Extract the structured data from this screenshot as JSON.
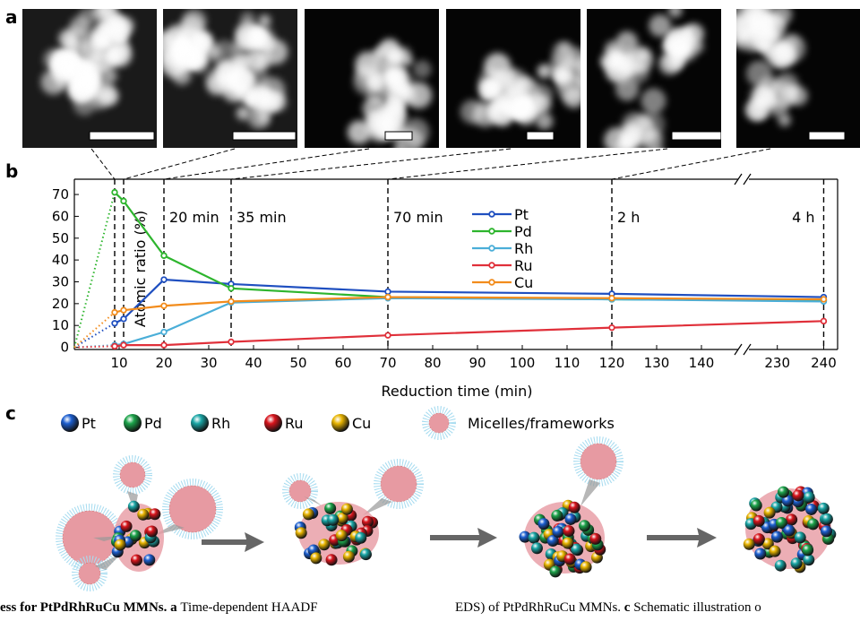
{
  "panel_labels": [
    "a",
    "b",
    "c"
  ],
  "schematic": {
    "legend": [
      "Pt",
      "Pd",
      "Rh",
      "Ru",
      "Cu"
    ],
    "micelle_label": "Micelles/frameworks"
  },
  "caption": {
    "left_bold": "ess for PtPdRhRuCu MMNs. a",
    "left": "Time-dependent HAADF",
    "right": "EDS) of PtPdRhRuCu MMNs.",
    "right_bold": "c",
    "right_end": "Schematic illustration o"
  },
  "chart_data": {
    "type": "line",
    "xlabel": "Reduction time (min)",
    "ylabel": "Atomic ratio (%)",
    "x": [
      0,
      9,
      11,
      20,
      35,
      70,
      120,
      240
    ],
    "series": [
      {
        "name": "Pt",
        "color": "#1f4fc0",
        "values": [
          0,
          11,
          13,
          31,
          29,
          25.5,
          24.5,
          23
        ]
      },
      {
        "name": "Pd",
        "color": "#2db52d",
        "values": [
          0,
          71,
          67,
          42,
          27,
          23,
          22,
          21.5
        ]
      },
      {
        "name": "Rh",
        "color": "#4aaed8",
        "values": [
          0,
          1,
          1.5,
          7,
          20.5,
          22.5,
          22,
          21
        ]
      },
      {
        "name": "Ru",
        "color": "#e0303a",
        "values": [
          0,
          0.5,
          1,
          1,
          2.5,
          5.5,
          9,
          12
        ]
      },
      {
        "name": "Cu",
        "color": "#f28c1c",
        "values": [
          0,
          16,
          17,
          19,
          21,
          23,
          22.5,
          22
        ]
      }
    ],
    "xlim": [
      0,
      243
    ],
    "x_break": [
      146,
      226
    ],
    "xticks": [
      10,
      20,
      30,
      40,
      50,
      60,
      70,
      80,
      90,
      100,
      110,
      120,
      130,
      140,
      230,
      240
    ],
    "ylim": [
      -1,
      77
    ],
    "yticks": [
      0,
      10,
      20,
      30,
      40,
      50,
      60,
      70
    ],
    "dotted_first_segment": true,
    "legend": "upper center",
    "time_markers": [
      9,
      11,
      20,
      35,
      70,
      120,
      240
    ],
    "time_labels": [
      {
        "x": 20,
        "label": "20 min"
      },
      {
        "x": 35,
        "label": "35 min"
      },
      {
        "x": 70,
        "label": "70 min"
      },
      {
        "x": 120,
        "label": "2 h"
      },
      {
        "x": 240,
        "label": "4 h"
      }
    ]
  }
}
